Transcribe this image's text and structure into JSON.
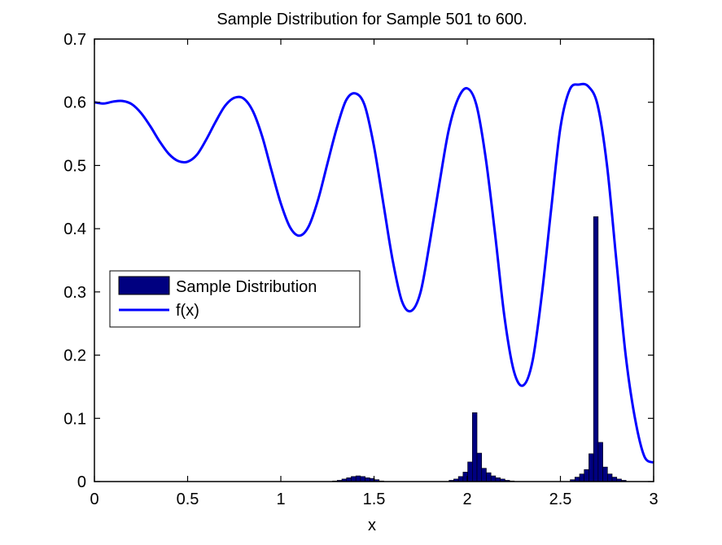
{
  "chart_data": {
    "type": "bar+line",
    "title": "Sample Distribution for Sample 501 to 600.",
    "xlabel": "x",
    "ylabel": "",
    "xlim": [
      0,
      3
    ],
    "ylim": [
      0,
      0.7
    ],
    "grid": false,
    "legend_position": "middle-left",
    "xticks": [
      0,
      0.5,
      1,
      1.5,
      2,
      2.5,
      3
    ],
    "xtick_labels": [
      "0",
      "0.5",
      "1",
      "1.5",
      "2",
      "2.5",
      "3"
    ],
    "yticks": [
      0,
      0.1,
      0.2,
      0.3,
      0.4,
      0.5,
      0.6,
      0.7
    ],
    "ytick_labels": [
      "0",
      "0.1",
      "0.2",
      "0.3",
      "0.4",
      "0.5",
      "0.6",
      "0.7"
    ],
    "series": [
      {
        "name": "Sample Distribution",
        "kind": "bar",
        "color": "#000080",
        "edge_color": "#000000",
        "bin_width": 0.025,
        "x": [
          1.29,
          1.315,
          1.34,
          1.365,
          1.39,
          1.415,
          1.44,
          1.465,
          1.49,
          1.515,
          1.54,
          1.915,
          1.94,
          1.965,
          1.99,
          2.015,
          2.04,
          2.065,
          2.09,
          2.115,
          2.14,
          2.165,
          2.19,
          2.215,
          2.24,
          2.565,
          2.59,
          2.615,
          2.64,
          2.665,
          2.69,
          2.715,
          2.74,
          2.765,
          2.79,
          2.815,
          2.84
        ],
        "values": [
          0.001,
          0.002,
          0.004,
          0.006,
          0.008,
          0.009,
          0.008,
          0.006,
          0.005,
          0.003,
          0.001,
          0.002,
          0.004,
          0.008,
          0.015,
          0.031,
          0.109,
          0.045,
          0.021,
          0.014,
          0.009,
          0.006,
          0.004,
          0.002,
          0.001,
          0.003,
          0.007,
          0.012,
          0.019,
          0.044,
          0.419,
          0.062,
          0.023,
          0.012,
          0.007,
          0.004,
          0.002
        ]
      },
      {
        "name": "f(x)",
        "kind": "line",
        "color": "#0000ff",
        "line_width": 3,
        "x": [
          0,
          0.05,
          0.1,
          0.15,
          0.2,
          0.25,
          0.3,
          0.35,
          0.4,
          0.45,
          0.5,
          0.55,
          0.6,
          0.65,
          0.7,
          0.75,
          0.8,
          0.85,
          0.9,
          0.95,
          1.0,
          1.05,
          1.1,
          1.15,
          1.2,
          1.25,
          1.3,
          1.35,
          1.4,
          1.45,
          1.5,
          1.55,
          1.6,
          1.65,
          1.7,
          1.75,
          1.8,
          1.85,
          1.9,
          1.95,
          2.0,
          2.05,
          2.1,
          2.15,
          2.2,
          2.25,
          2.3,
          2.35,
          2.4,
          2.45,
          2.5,
          2.55,
          2.6,
          2.65,
          2.7,
          2.75,
          2.8,
          2.85,
          2.9,
          2.95,
          3.0
        ],
        "values": [
          0.6,
          0.598,
          0.601,
          0.602,
          0.597,
          0.583,
          0.562,
          0.538,
          0.518,
          0.507,
          0.506,
          0.517,
          0.541,
          0.569,
          0.594,
          0.607,
          0.606,
          0.586,
          0.546,
          0.492,
          0.44,
          0.402,
          0.389,
          0.404,
          0.446,
          0.503,
          0.559,
          0.603,
          0.614,
          0.595,
          0.53,
          0.44,
          0.35,
          0.285,
          0.27,
          0.3,
          0.38,
          0.47,
          0.555,
          0.605,
          0.622,
          0.595,
          0.51,
          0.39,
          0.26,
          0.175,
          0.152,
          0.19,
          0.295,
          0.43,
          0.56,
          0.62,
          0.628,
          0.625,
          0.595,
          0.5,
          0.35,
          0.2,
          0.1,
          0.04,
          0.03
        ]
      }
    ]
  }
}
